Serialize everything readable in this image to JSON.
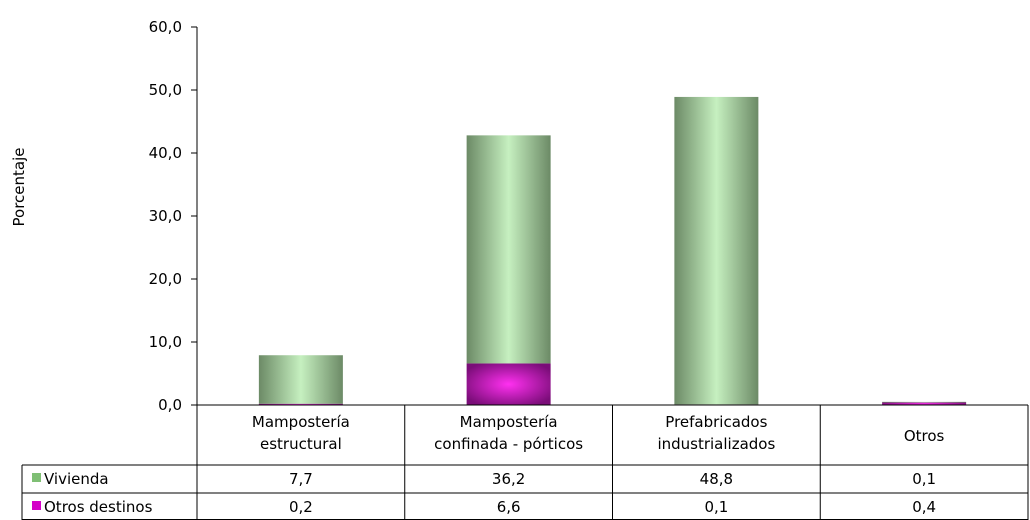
{
  "chart_data": {
    "type": "bar",
    "stacked": true,
    "ylabel": "Porcentaje",
    "ylim": [
      0,
      60
    ],
    "ytick_labels": [
      "0,0",
      "10,0",
      "20,0",
      "30,0",
      "40,0",
      "50,0",
      "60,0"
    ],
    "categories": [
      [
        "Mampostería",
        "estructural"
      ],
      [
        "Mampostería",
        "confinada - pórticos"
      ],
      [
        "Prefabricados",
        "industrializados"
      ],
      [
        "Otros"
      ]
    ],
    "series": [
      {
        "name": "Vivienda",
        "color": "#b9e6b1",
        "values": [
          7.7,
          36.2,
          48.8,
          0.1
        ],
        "value_labels": [
          "7,7",
          "36,2",
          "48,8",
          "0,1"
        ]
      },
      {
        "name": "Otros destinos",
        "color": "#e01ed8",
        "values": [
          0.2,
          6.6,
          0.1,
          0.4
        ],
        "value_labels": [
          "0,2",
          "6,6",
          "0,1",
          "0,4"
        ]
      }
    ],
    "legend": "data-table",
    "grid": false
  }
}
